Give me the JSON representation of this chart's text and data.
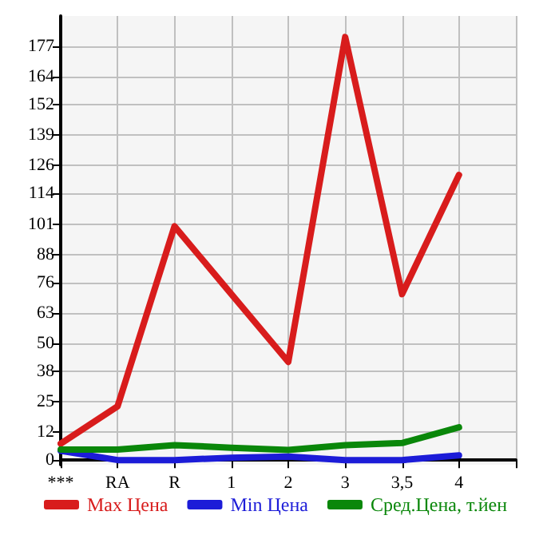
{
  "chart_data": {
    "type": "line",
    "categories": [
      "***",
      "RA",
      "R",
      "1",
      "2",
      "3",
      "3,5",
      "4"
    ],
    "series": [
      {
        "name": "Max Цена",
        "color": "#d81c1c",
        "values": [
          7,
          23,
          100,
          71,
          42,
          181,
          71,
          122
        ]
      },
      {
        "name": "Min Цена",
        "color": "#1c1cd8",
        "values": [
          4,
          0,
          0,
          1,
          1.5,
          0,
          0,
          2
        ]
      },
      {
        "name": "Сред.Цена, т.йен",
        "color": "#0a870a",
        "values": [
          4.5,
          4.5,
          6.4,
          5.3,
          4.3,
          6.4,
          7.3,
          14
        ]
      }
    ],
    "ylim": [
      -2,
      190
    ],
    "yticks": [
      0,
      12,
      25,
      38,
      50,
      63,
      76,
      88,
      101,
      114,
      126,
      139,
      152,
      164,
      177
    ],
    "grid": true,
    "legend": "bottom",
    "marker": "none",
    "line_style": "solid"
  }
}
